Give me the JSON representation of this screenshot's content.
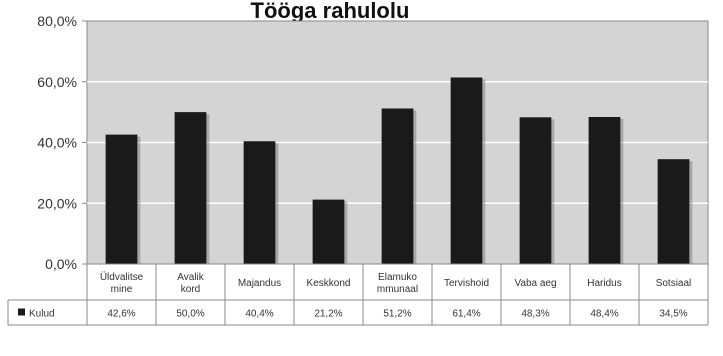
{
  "chart_data": {
    "type": "bar",
    "title": "Tööga rahulolu",
    "categories": [
      [
        "Üldvalitse",
        "mine"
      ],
      [
        "Avalik",
        "kord"
      ],
      [
        "Majandus"
      ],
      [
        "Keskkond"
      ],
      [
        "Elamuko",
        "mmunaal"
      ],
      [
        "Tervishoid"
      ],
      [
        "Vaba aeg"
      ],
      [
        "Haridus"
      ],
      [
        "Sotsiaal"
      ]
    ],
    "series": [
      {
        "name": "Kulud",
        "color": "#1a1a1a",
        "values": [
          42.6,
          50.0,
          40.4,
          21.2,
          51.2,
          61.4,
          48.3,
          48.4,
          34.5
        ],
        "value_labels": [
          "42,6%",
          "50,0%",
          "40,4%",
          "21,2%",
          "51,2%",
          "61,4%",
          "48,3%",
          "48,4%",
          "34,5%"
        ]
      }
    ],
    "y_ticks": [
      "0,0%",
      "20,0%",
      "40,0%",
      "60,0%",
      "80,0%"
    ],
    "ylim": [
      0,
      80
    ],
    "grid": true,
    "legend": "bottom-left",
    "colors": {
      "plot_background": "#d4d4d4",
      "bar": "#1a1a1a",
      "grid": "#ffffff",
      "axis": "#888888"
    }
  }
}
